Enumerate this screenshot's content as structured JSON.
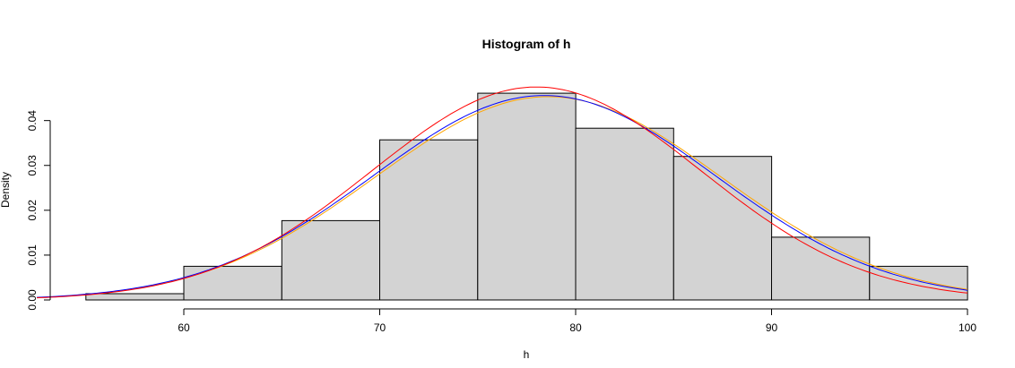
{
  "chart_data": {
    "type": "bar",
    "title": "Histogram of h",
    "xlabel": "h",
    "ylabel": "Density",
    "xlim": [
      52.5,
      100
    ],
    "ylim": [
      0,
      0.04812
    ],
    "x_ticks": [
      60,
      70,
      80,
      90,
      100
    ],
    "y_ticks": [
      0.0,
      0.01,
      0.02,
      0.03,
      0.04
    ],
    "y_tick_labels": [
      "0.00",
      "0.01",
      "0.02",
      "0.03",
      "0.04"
    ],
    "bins": [
      {
        "start": 55,
        "end": 60,
        "density": 0.0014
      },
      {
        "start": 60,
        "end": 65,
        "density": 0.0075
      },
      {
        "start": 65,
        "end": 70,
        "density": 0.0177
      },
      {
        "start": 70,
        "end": 75,
        "density": 0.0357
      },
      {
        "start": 75,
        "end": 80,
        "density": 0.0461
      },
      {
        "start": 80,
        "end": 85,
        "density": 0.0383
      },
      {
        "start": 85,
        "end": 90,
        "density": 0.032
      },
      {
        "start": 90,
        "end": 95,
        "density": 0.014
      },
      {
        "start": 95,
        "end": 100,
        "density": 0.0075
      }
    ],
    "series": [
      {
        "type": "normal-density",
        "color": "#ffa500",
        "mean": 78.6,
        "sd": 8.8
      },
      {
        "type": "normal-density",
        "color": "#0000ff",
        "mean": 78.4,
        "sd": 8.75
      },
      {
        "type": "normal-density",
        "color": "#ff0000",
        "mean": 78.0,
        "sd": 8.4
      }
    ],
    "bar_fill": "#d3d3d3",
    "bar_stroke": "#000000",
    "grid": false,
    "legend": "none"
  }
}
